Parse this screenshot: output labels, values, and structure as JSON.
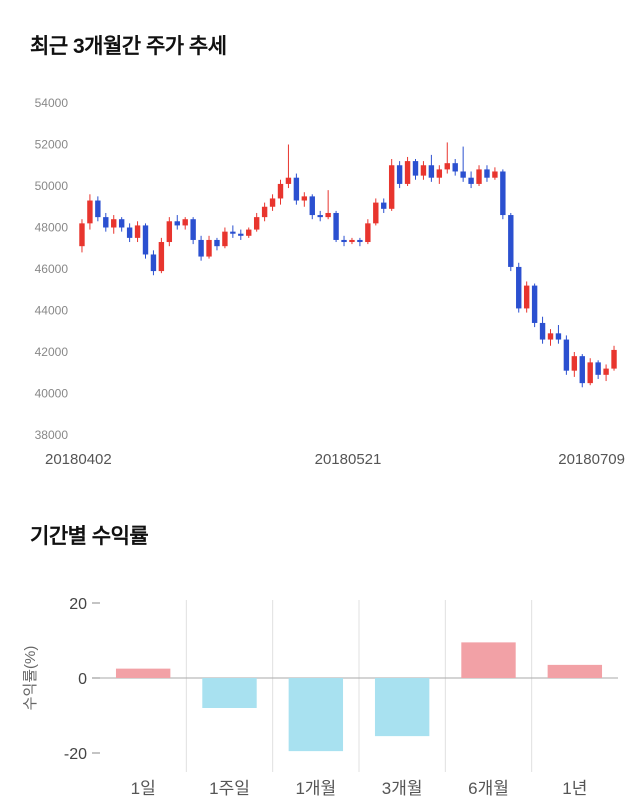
{
  "page": {
    "bg": "#ffffff"
  },
  "price_section": {
    "title": "최근 3개월간 주가 추세"
  },
  "returns_section": {
    "title": "기간별 수익률"
  },
  "chart_data": [
    {
      "type": "candlestick",
      "title": "최근 3개월간 주가 추세",
      "ylim": [
        38000,
        54000
      ],
      "y_ticks": [
        54000,
        52000,
        50000,
        48000,
        46000,
        44000,
        42000,
        40000,
        38000
      ],
      "x_tick_labels": [
        "20180402",
        "20180521",
        "20180709"
      ],
      "up_color": "#e8352e",
      "down_color": "#2b50d0",
      "axis_text_color": "#888888",
      "date_text_color": "#555555",
      "candles": [
        [
          47100,
          48400,
          46800,
          48200
        ],
        [
          48200,
          49600,
          47900,
          49300
        ],
        [
          49300,
          49500,
          48300,
          48500
        ],
        [
          48500,
          48700,
          47800,
          48000
        ],
        [
          48000,
          48600,
          47700,
          48400
        ],
        [
          48400,
          48500,
          47800,
          48000
        ],
        [
          48000,
          48200,
          47300,
          47500
        ],
        [
          47500,
          48300,
          47300,
          48100
        ],
        [
          48100,
          48200,
          46500,
          46700
        ],
        [
          46700,
          46900,
          45700,
          45900
        ],
        [
          45900,
          47500,
          45800,
          47300
        ],
        [
          47300,
          48500,
          47100,
          48300
        ],
        [
          48300,
          48600,
          47900,
          48100
        ],
        [
          48100,
          48500,
          47900,
          48400
        ],
        [
          48400,
          48500,
          47200,
          47400
        ],
        [
          47400,
          47600,
          46400,
          46600
        ],
        [
          46600,
          47600,
          46500,
          47400
        ],
        [
          47400,
          47500,
          46900,
          47100
        ],
        [
          47100,
          48000,
          47000,
          47800
        ],
        [
          47800,
          48100,
          47500,
          47700
        ],
        [
          47700,
          47900,
          47400,
          47600
        ],
        [
          47600,
          48000,
          47500,
          47900
        ],
        [
          47900,
          48700,
          47800,
          48500
        ],
        [
          48500,
          49200,
          48300,
          49000
        ],
        [
          49000,
          49600,
          48800,
          49400
        ],
        [
          49400,
          50300,
          49100,
          50100
        ],
        [
          50100,
          52000,
          49900,
          50400
        ],
        [
          50400,
          50600,
          49100,
          49300
        ],
        [
          49300,
          49700,
          49000,
          49500
        ],
        [
          49500,
          49600,
          48400,
          48600
        ],
        [
          48600,
          48800,
          48300,
          48500
        ],
        [
          48500,
          49800,
          48400,
          48700
        ],
        [
          48700,
          48800,
          47300,
          47400
        ],
        [
          47400,
          47600,
          47100,
          47300
        ],
        [
          47300,
          47500,
          47200,
          47400
        ],
        [
          47400,
          47500,
          47100,
          47300
        ],
        [
          47300,
          48400,
          47200,
          48200
        ],
        [
          48200,
          49400,
          48100,
          49200
        ],
        [
          49200,
          49400,
          48700,
          48900
        ],
        [
          48900,
          51300,
          48800,
          51000
        ],
        [
          51000,
          51200,
          49900,
          50100
        ],
        [
          50100,
          51400,
          50000,
          51200
        ],
        [
          51200,
          51300,
          50300,
          50500
        ],
        [
          50500,
          51200,
          50300,
          51000
        ],
        [
          51000,
          51500,
          50200,
          50400
        ],
        [
          50400,
          51000,
          50100,
          50800
        ],
        [
          50800,
          52100,
          50600,
          51100
        ],
        [
          51100,
          51300,
          50500,
          50700
        ],
        [
          50700,
          51900,
          50200,
          50400
        ],
        [
          50400,
          50700,
          49900,
          50100
        ],
        [
          50100,
          51000,
          50000,
          50800
        ],
        [
          50800,
          51000,
          50200,
          50400
        ],
        [
          50400,
          50900,
          50300,
          50700
        ],
        [
          50700,
          50800,
          48400,
          48600
        ],
        [
          48600,
          48700,
          45900,
          46100
        ],
        [
          46100,
          46300,
          43900,
          44100
        ],
        [
          44100,
          45400,
          43900,
          45200
        ],
        [
          45200,
          45300,
          43200,
          43400
        ],
        [
          43400,
          43700,
          42400,
          42600
        ],
        [
          42600,
          43100,
          42300,
          42900
        ],
        [
          42900,
          43300,
          42400,
          42600
        ],
        [
          42600,
          42800,
          40900,
          41100
        ],
        [
          41100,
          42000,
          40800,
          41800
        ],
        [
          41800,
          41900,
          40300,
          40500
        ],
        [
          40500,
          41700,
          40400,
          41500
        ],
        [
          41500,
          41600,
          40700,
          40900
        ],
        [
          40900,
          41400,
          40600,
          41200
        ],
        [
          41200,
          42300,
          41100,
          42100
        ]
      ]
    },
    {
      "type": "bar",
      "title": "기간별 수익률",
      "ylabel": "수익률(%)",
      "categories": [
        "1일",
        "1주일",
        "1개월",
        "3개월",
        "6개월",
        "1년"
      ],
      "values": [
        2.5,
        -8,
        -19.5,
        -15.5,
        9.5,
        3.5
      ],
      "y_ticks": [
        20,
        0,
        -20
      ],
      "ylim": [
        -24,
        22
      ],
      "positive_color": "#f2a1a6",
      "negative_color": "#a8e1f0",
      "gridline_color": "#e0e0e0",
      "zero_line_color": "#aaaaaa",
      "axis_text_color": "#444444",
      "category_text_color": "#555555"
    }
  ]
}
